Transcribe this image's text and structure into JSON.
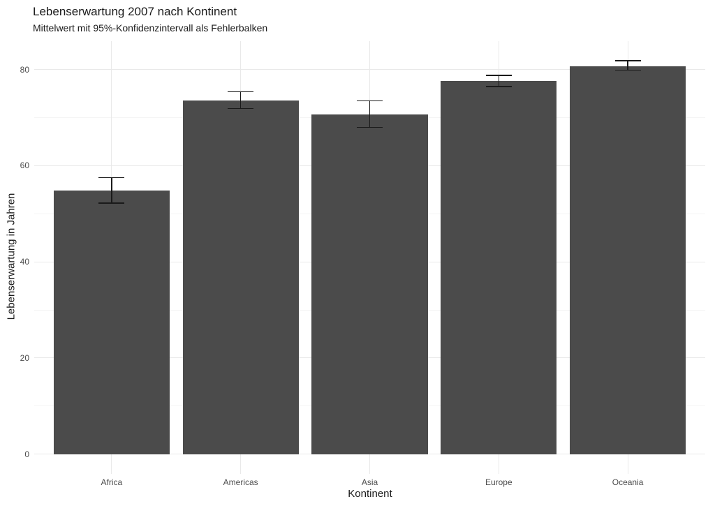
{
  "chart_data": {
    "type": "bar",
    "title": "Lebenserwartung 2007 nach Kontinent",
    "subtitle": "Mittelwert mit 95%-Konfidenzintervall als Fehlerbalken",
    "xlabel": "Kontinent",
    "ylabel": "Lebenserwartung in Jahren",
    "categories": [
      "Africa",
      "Americas",
      "Asia",
      "Europe",
      "Oceania"
    ],
    "values": [
      54.8,
      73.6,
      70.7,
      77.6,
      80.7
    ],
    "error_low": [
      52.2,
      71.9,
      68.0,
      76.5,
      79.9
    ],
    "error_high": [
      57.5,
      75.4,
      73.5,
      78.8,
      81.8
    ],
    "y_ticks": [
      0,
      20,
      40,
      60,
      80
    ],
    "y_minor_ticks": [
      10,
      30,
      50,
      70
    ],
    "ylim": [
      -4.1,
      85.9
    ],
    "grid": true,
    "legend": false,
    "colors": {
      "bar_fill": "#4b4b4b",
      "errorbar": "#1a1a1a",
      "grid_major": "#e9e9e9",
      "grid_minor": "#f4f4f4",
      "axis_text": "#4d4d4d",
      "title_text": "#1a1a1a",
      "background": "#ffffff"
    }
  }
}
